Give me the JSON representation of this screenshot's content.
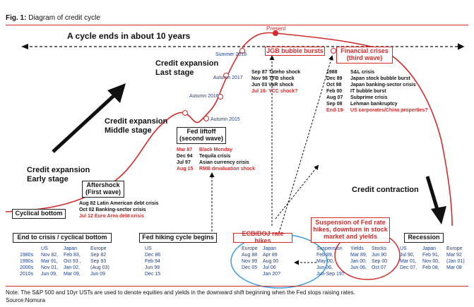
{
  "figure": {
    "label": "Fig. 1:",
    "title": "Diagram of credit cycle"
  },
  "cycle_text": "A cycle ends in about 10 years",
  "present_label": "Present",
  "stages": {
    "late": [
      "Credit expansion",
      "Last stage"
    ],
    "middle": [
      "Credit expansion",
      "Middle stage"
    ],
    "early": [
      "Credit expansion",
      "Early stage"
    ],
    "contraction": "Credit contraction"
  },
  "timeline": [
    "Summer 2018",
    "Autumn 2017",
    "Autumn 2016",
    "Autumn 2015"
  ],
  "jgb": {
    "title": "JGB bubble bursts",
    "events": [
      {
        "date": "Sep 87",
        "text": "Tateho shock",
        "color": "#111111"
      },
      {
        "date": "Nov 98",
        "text": "TFB shock",
        "color": "#111111"
      },
      {
        "date": "Jun 03",
        "text": "VaR shock",
        "color": "#111111"
      },
      {
        "date": "Jul 16-",
        "text": "YCC shock?",
        "color": "#d42a2a"
      }
    ]
  },
  "financial_crises": {
    "title": [
      "Financial crises",
      "(third wave)"
    ],
    "events": [
      {
        "date": "1988",
        "text": "S&L crisis",
        "color": "#111111"
      },
      {
        "date": "Dec 89",
        "text": "Japan stock bubble burst",
        "color": "#111111"
      },
      {
        "date": "Oct 98",
        "text": "Japan banking-sector crisis",
        "color": "#111111"
      },
      {
        "date": "Feb 00",
        "text": "IT bubble burst",
        "color": "#111111"
      },
      {
        "date": "Aug 07",
        "text": "Subprime crisis",
        "color": "#111111"
      },
      {
        "date": "Sep 08",
        "text": "Lehman bankruptcy",
        "color": "#111111"
      },
      {
        "date": "End-19-",
        "text": "US corporates/China properties?",
        "color": "#d42a2a"
      }
    ]
  },
  "fed_liftoff": {
    "title": [
      "Fed liftoff",
      "(second wave)"
    ],
    "events": [
      {
        "date": "Mar 87",
        "text": "Black Monday",
        "color": "#d42a2a"
      },
      {
        "date": "Dec 94",
        "text": "Tequila crisis",
        "color": "#111111"
      },
      {
        "date": "Jul 97",
        "text": "Asian currency crisis",
        "color": "#111111"
      },
      {
        "date": "Aug 15",
        "text": "RMB devaluation shock",
        "color": "#d42a2a"
      }
    ]
  },
  "aftershock": {
    "title": [
      "Aftershock",
      "(First wave)"
    ],
    "events": [
      {
        "date": "Aug 82",
        "text": "Latin American debt crisis",
        "color": "#111111"
      },
      {
        "date": "Oct 02",
        "text": "Banking-sector crisis",
        "color": "#111111"
      },
      {
        "date": "Jul 12",
        "text": "Euro Area debt crisis",
        "color": "#d42a2a"
      }
    ]
  },
  "cyclical_bottom": "Cyclical bottom",
  "bottom_table": {
    "title": "End to crisis / cyclical bottom",
    "headers": [
      "US",
      "Japan",
      "Europe"
    ],
    "rows": [
      [
        "1980s",
        "Nov 82,",
        "Feb 83,",
        "Sep 82"
      ],
      [
        "1990s",
        "Mar 91,",
        "Oct 93 ,",
        "Sep 93"
      ],
      [
        "2000s",
        "Nov 01,",
        "Jan 02,",
        "(Aug 03)"
      ],
      [
        "2010s",
        "Jun 09,",
        "Mar 09,",
        "Jun 09"
      ]
    ]
  },
  "fed_hiking": {
    "title": "Fed hiking cycle begins",
    "header": "US",
    "rows": [
      "Dec 86",
      "Feb 94",
      "Jun 99",
      "Dec 15"
    ]
  },
  "ecb_boj": {
    "title": "ECB/BOJ rate hikes",
    "headers": [
      "Europe",
      "Japan"
    ],
    "rows": [
      [
        "Aug 88",
        "Apr 89"
      ],
      [
        "Nov 99",
        "Aug 00"
      ],
      [
        "Dec 05",
        "Jul 06"
      ],
      [
        "",
        "Jan 20?"
      ]
    ]
  },
  "suspension": {
    "title": [
      "Suspension of Fed rate",
      "hikes, downturn in stock",
      "market and yields"
    ],
    "headers": [
      "Suspension",
      "Yields",
      "Stocks"
    ],
    "rows": [
      [
        "Feb 89,",
        "Mar 89,",
        "Jun 90"
      ],
      [
        "May 00,",
        "Jan 00,",
        "Sep 00"
      ],
      [
        "Jun 06,",
        "Jun 06,",
        "Oct 07"
      ],
      [
        "Jun-Sep 19?",
        "",
        ""
      ]
    ]
  },
  "recession": {
    "title": "Recession",
    "headers": [
      "US",
      "Japan",
      "Europe"
    ],
    "rows": [
      [
        "Jul 90,",
        "Feb 91,",
        "Mar 92"
      ],
      [
        "Mar 01,",
        "Nov 00,",
        "(Jan 01)"
      ],
      [
        "Dec 07,",
        "Feb 08,",
        "Mar 08"
      ]
    ]
  },
  "note": "Note: The S&P 500 and 10yr USTs are used to denote equities and yields in the downward shift beginning when the Fed stops raising rates.",
  "source": "Source:Nomura",
  "colors": {
    "accent_red": "#d42a2a",
    "navy": "#1c3f8f",
    "circle_blue": "#3a9be0",
    "black": "#111111"
  }
}
